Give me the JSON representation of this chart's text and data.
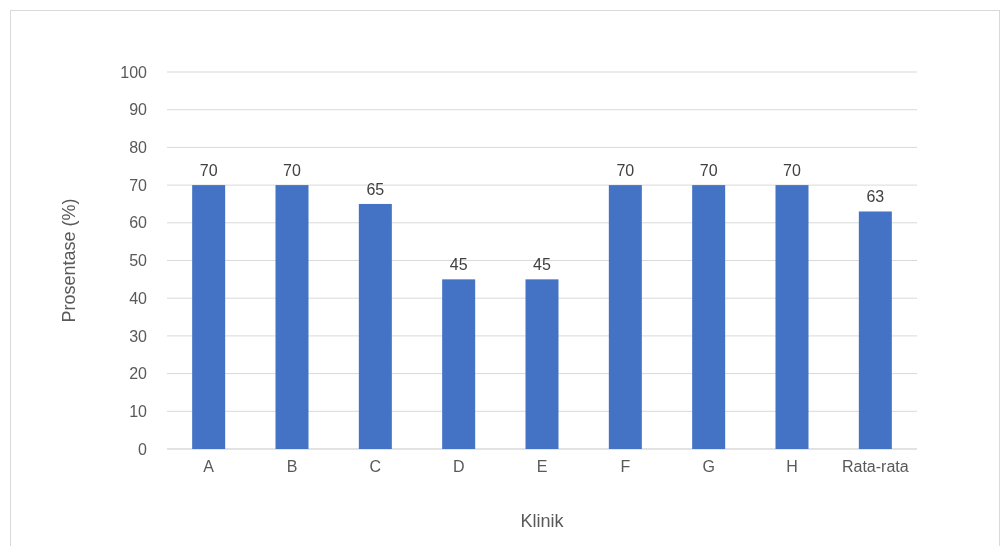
{
  "chart_data": {
    "type": "bar",
    "xlabel": "Klinik",
    "ylabel": "Prosentase (%)",
    "categories": [
      "A",
      "B",
      "C",
      "D",
      "E",
      "F",
      "G",
      "H",
      "Rata-rata"
    ],
    "values": [
      70,
      70,
      65,
      45,
      45,
      70,
      70,
      70,
      63
    ],
    "color": "#4472c4",
    "ylim": [
      0,
      100
    ],
    "yticks": [
      0,
      10,
      20,
      30,
      40,
      50,
      60,
      70,
      80,
      90,
      100
    ],
    "grid": "y",
    "data_labels": true
  }
}
